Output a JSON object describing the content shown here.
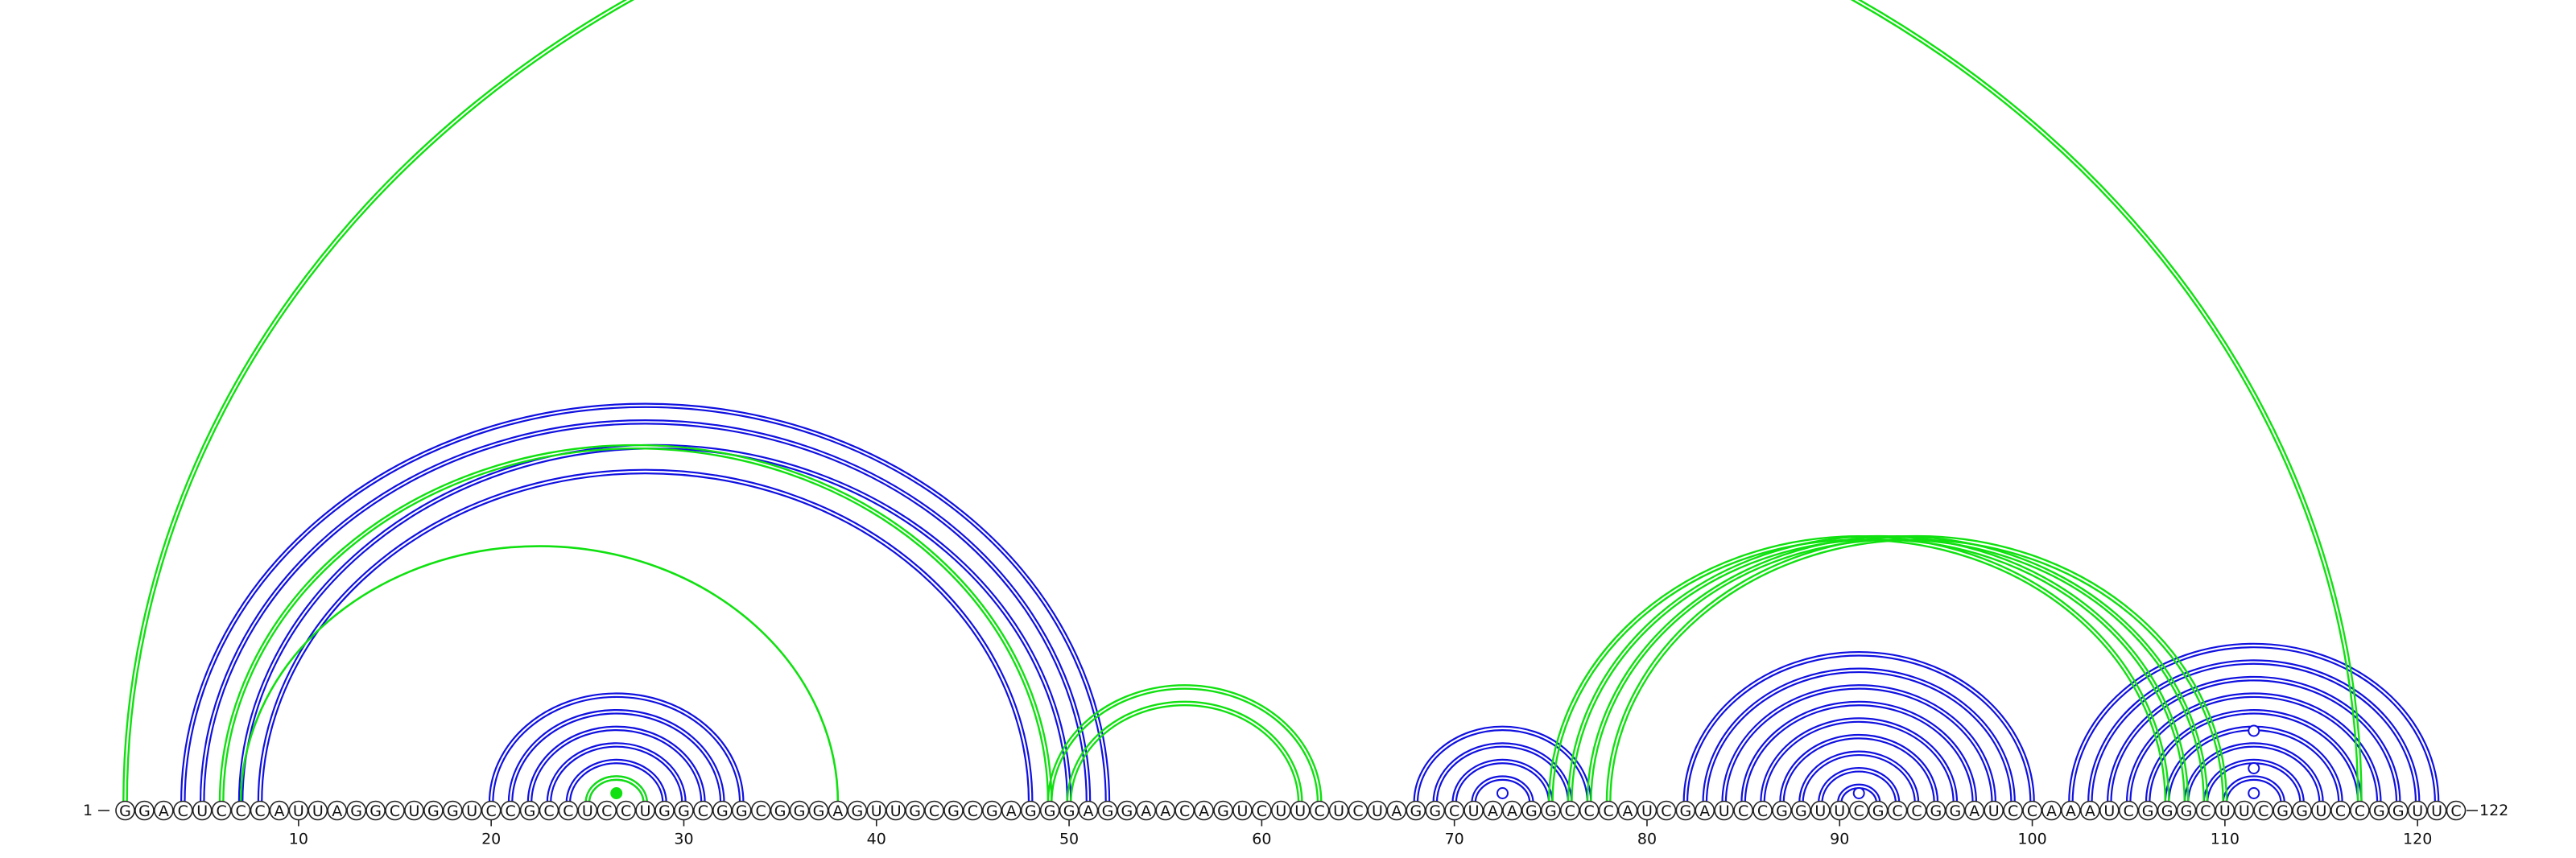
{
  "sequence": "GGACUCCCAUUAGGCUGGUCCGCCUCCUGGCGGCGGGAGUUGCGCGAGGGAGGAACAGUCUUCUCUAGGCUAAGGCCCAUCGAUCCGGUUCGCCGGAUCCAAAUCGGGCUUCGGUCCGGUUC",
  "start_label": "1",
  "end_label": "122",
  "ticks": [
    10,
    20,
    30,
    40,
    50,
    60,
    70,
    80,
    90,
    100,
    110,
    120
  ],
  "colors": {
    "primary": "#1010e0",
    "alternate": "#10e010",
    "text": "#111111",
    "background": "#ffffff"
  },
  "arcs": {
    "primary": [
      [
        4,
        52
      ],
      [
        5,
        51
      ],
      [
        7,
        50
      ],
      [
        8,
        48
      ],
      [
        20,
        33
      ],
      [
        21,
        32
      ],
      [
        22,
        31
      ],
      [
        23,
        30
      ],
      [
        24,
        29
      ],
      [
        25,
        28
      ],
      [
        68,
        77
      ],
      [
        69,
        76
      ],
      [
        70,
        75
      ],
      [
        71,
        74
      ],
      [
        82,
        100
      ],
      [
        83,
        99
      ],
      [
        84,
        98
      ],
      [
        85,
        97
      ],
      [
        86,
        96
      ],
      [
        87,
        95
      ],
      [
        88,
        94
      ],
      [
        89,
        93
      ],
      [
        90,
        92
      ],
      [
        102,
        121
      ],
      [
        103,
        120
      ],
      [
        104,
        119
      ],
      [
        105,
        118
      ],
      [
        106,
        117
      ],
      [
        107,
        116
      ],
      [
        108,
        115
      ],
      [
        109,
        114
      ],
      [
        110,
        113
      ]
    ],
    "alternate": [
      [
        1,
        117
      ],
      [
        6,
        49
      ],
      [
        49,
        63
      ],
      [
        50,
        62
      ],
      [
        75,
        107
      ],
      [
        76,
        108
      ],
      [
        77,
        109
      ],
      [
        78,
        110
      ],
      [
        25,
        28
      ]
    ],
    "alternate_thin": [
      [
        7,
        38
      ]
    ],
    "double_lines": true
  },
  "markers": [
    {
      "x": 26.5,
      "level": 1,
      "type": "filled",
      "set": "alternate"
    },
    {
      "x": 72.5,
      "level": 1,
      "type": "open",
      "set": "primary"
    },
    {
      "x": 91,
      "level": 1,
      "type": "open",
      "set": "primary"
    },
    {
      "x": 111.5,
      "level": 1,
      "type": "open",
      "set": "primary"
    },
    {
      "x": 111.5,
      "level": 3,
      "type": "open",
      "set": "primary"
    },
    {
      "x": 111.5,
      "level": 6,
      "type": "open",
      "set": "primary"
    }
  ]
}
